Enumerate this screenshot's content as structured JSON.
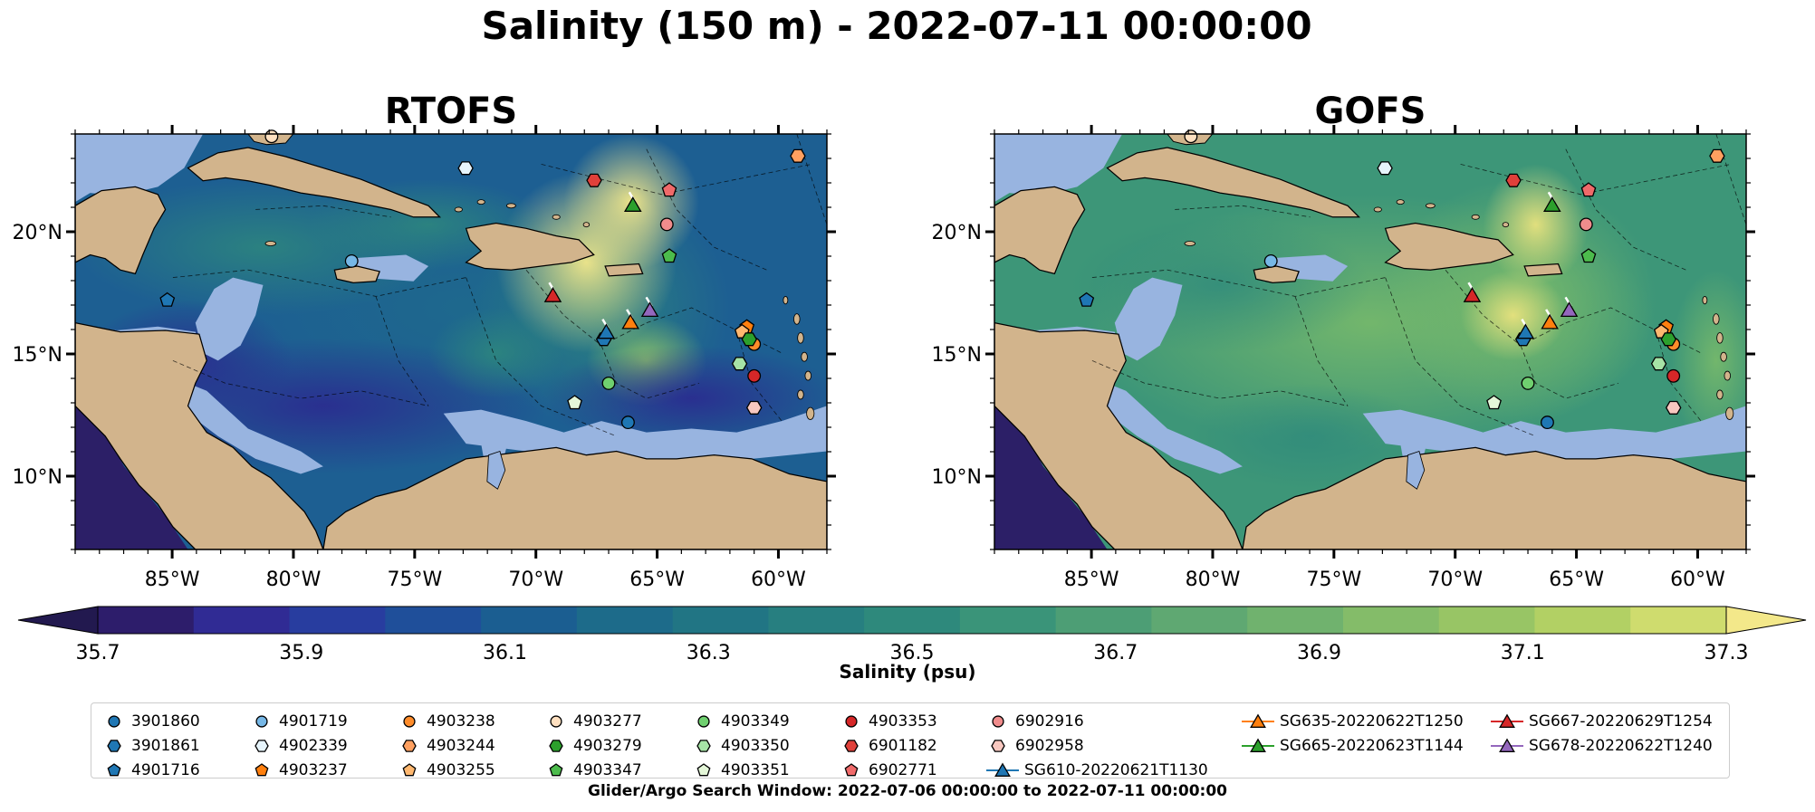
{
  "title": "Salinity (150 m) - 2022-07-11 00:00:00",
  "panels": [
    {
      "title": "RTOFS"
    },
    {
      "title": "GOFS"
    }
  ],
  "colorbar": {
    "label": "Salinity (psu)",
    "ticks": [
      "35.7",
      "35.9",
      "36.1",
      "36.3",
      "36.5",
      "36.7",
      "36.9",
      "37.1",
      "37.3"
    ],
    "colors": [
      "#2d1d6b",
      "#302b94",
      "#283d9f",
      "#1f4f9a",
      "#1b5e91",
      "#1d6b8a",
      "#217584",
      "#277f80",
      "#2e897c",
      "#3a9479",
      "#4d9e75",
      "#5fa872",
      "#70b26e",
      "#84bc69",
      "#98c565",
      "#b2d064",
      "#cfdc6e"
    ],
    "under_color": "#22194f",
    "over_color": "#f3e88a"
  },
  "chart_data": [
    {
      "type": "heatmap",
      "title": "RTOFS",
      "variable": "Salinity",
      "depth_m": 150,
      "time": "2022-07-11 00:00:00",
      "units": "psu",
      "xlim": [
        -89,
        -58
      ],
      "ylim": [
        7,
        24
      ],
      "x_ticks": [
        "85°W",
        "80°W",
        "75°W",
        "70°W",
        "65°W",
        "60°W"
      ],
      "y_ticks": [
        "10°N",
        "15°N",
        "20°N"
      ],
      "x_tick_values": [
        -85,
        -80,
        -75,
        -70,
        -65,
        -60
      ],
      "y_tick_values": [
        10,
        15,
        20
      ],
      "clim": [
        35.7,
        37.3
      ]
    },
    {
      "type": "heatmap",
      "title": "GOFS",
      "variable": "Salinity",
      "depth_m": 150,
      "time": "2022-07-11 00:00:00",
      "units": "psu",
      "xlim": [
        -89,
        -58
      ],
      "ylim": [
        7,
        24
      ],
      "x_ticks": [
        "85°W",
        "80°W",
        "75°W",
        "70°W",
        "65°W",
        "60°W"
      ],
      "y_ticks": [
        "10°N",
        "15°N",
        "20°N"
      ],
      "x_tick_values": [
        -85,
        -80,
        -75,
        -70,
        -65,
        -60
      ],
      "y_tick_values": [
        10,
        15,
        20
      ],
      "clim": [
        35.7,
        37.3
      ]
    }
  ],
  "observations": [
    {
      "id": "3901860",
      "lon": -66.2,
      "lat": 12.2,
      "marker": "circle",
      "color": "#1f77b4"
    },
    {
      "id": "3901861",
      "lon": -67.2,
      "lat": 15.6,
      "marker": "hexagon",
      "color": "#1f77b4"
    },
    {
      "id": "4901716",
      "lon": -85.2,
      "lat": 17.2,
      "marker": "pentagon",
      "color": "#1f77b4"
    },
    {
      "id": "4901719",
      "lon": -77.6,
      "lat": 18.8,
      "marker": "circle",
      "color": "#76b7e6"
    },
    {
      "id": "4902339",
      "lon": -72.9,
      "lat": 22.6,
      "marker": "hexagon",
      "color": "#e6f4fb"
    },
    {
      "id": "4903237",
      "lon": -61.3,
      "lat": 16.1,
      "marker": "pentagon",
      "color": "#ff7f0e"
    },
    {
      "id": "4903238",
      "lon": -61.0,
      "lat": 15.4,
      "marker": "circle",
      "color": "#ff8c2a"
    },
    {
      "id": "4903244",
      "lon": -59.2,
      "lat": 23.1,
      "marker": "hexagon",
      "color": "#ffa060"
    },
    {
      "id": "4903255",
      "lon": -61.5,
      "lat": 15.9,
      "marker": "pentagon",
      "color": "#ffb870"
    },
    {
      "id": "4903277",
      "lon": -80.9,
      "lat": 23.9,
      "marker": "circle",
      "color": "#ffe0c0"
    },
    {
      "id": "4903279",
      "lon": -61.2,
      "lat": 15.6,
      "marker": "hexagon",
      "color": "#2ca02c"
    },
    {
      "id": "4903347",
      "lon": -64.5,
      "lat": 19.0,
      "marker": "pentagon",
      "color": "#4cbb4c"
    },
    {
      "id": "4903349",
      "lon": -67.0,
      "lat": 13.8,
      "marker": "circle",
      "color": "#6fd06f"
    },
    {
      "id": "4903350",
      "lon": -61.6,
      "lat": 14.6,
      "marker": "hexagon",
      "color": "#a6e3a6"
    },
    {
      "id": "4903351",
      "lon": -68.4,
      "lat": 13.0,
      "marker": "pentagon",
      "color": "#e4f7d8"
    },
    {
      "id": "4903353",
      "lon": -61.0,
      "lat": 14.1,
      "marker": "circle",
      "color": "#d62728"
    },
    {
      "id": "6901182",
      "lon": -67.6,
      "lat": 22.1,
      "marker": "hexagon",
      "color": "#e0403a"
    },
    {
      "id": "6902771",
      "lon": -64.5,
      "lat": 21.7,
      "marker": "pentagon",
      "color": "#f06a6a"
    },
    {
      "id": "6902916",
      "lon": -64.6,
      "lat": 20.3,
      "marker": "circle",
      "color": "#f08c8c"
    },
    {
      "id": "6902958",
      "lon": -61.0,
      "lat": 12.8,
      "marker": "hexagon",
      "color": "#f8c8c0"
    },
    {
      "id": "SG610-20220621T1130",
      "lon": -67.1,
      "lat": 15.9,
      "marker": "triangle",
      "color": "#1f77b4",
      "line": "#1f77b4"
    },
    {
      "id": "SG635-20220622T1250",
      "lon": -66.1,
      "lat": 16.3,
      "marker": "triangle",
      "color": "#ff7f0e",
      "line": "#ff7f0e"
    },
    {
      "id": "SG665-20220623T1144",
      "lon": -66.0,
      "lat": 21.1,
      "marker": "triangle",
      "color": "#2ca02c",
      "line": "#2ca02c"
    },
    {
      "id": "SG667-20220629T1254",
      "lon": -69.3,
      "lat": 17.4,
      "marker": "triangle",
      "color": "#d62728",
      "line": "#d62728"
    },
    {
      "id": "SG678-20220622T1240",
      "lon": -65.3,
      "lat": 16.8,
      "marker": "triangle",
      "color": "#9467bd",
      "line": "#9467bd"
    }
  ],
  "legend_columns": [
    [
      "3901860",
      "3901861",
      "4901716"
    ],
    [
      "4901719",
      "4902339",
      "4903237"
    ],
    [
      "4903238",
      "4903244",
      "4903255"
    ],
    [
      "4903277",
      "4903279",
      "4903347"
    ],
    [
      "4903349",
      "4903350",
      "4903351"
    ],
    [
      "4903353",
      "6901182",
      "6902771"
    ],
    [
      "6902916",
      "6902958",
      "SG610-20220621T1130"
    ],
    [
      "SG635-20220622T1250",
      "SG665-20220623T1144"
    ],
    [
      "SG667-20220629T1254",
      "SG678-20220622T1240"
    ]
  ],
  "search_window": "Glider/Argo Search Window: 2022-07-06 00:00:00 to 2022-07-11 00:00:00",
  "colors": {
    "land": "#d2b48c",
    "shelf": "#98b4e0",
    "border": "#000000"
  }
}
